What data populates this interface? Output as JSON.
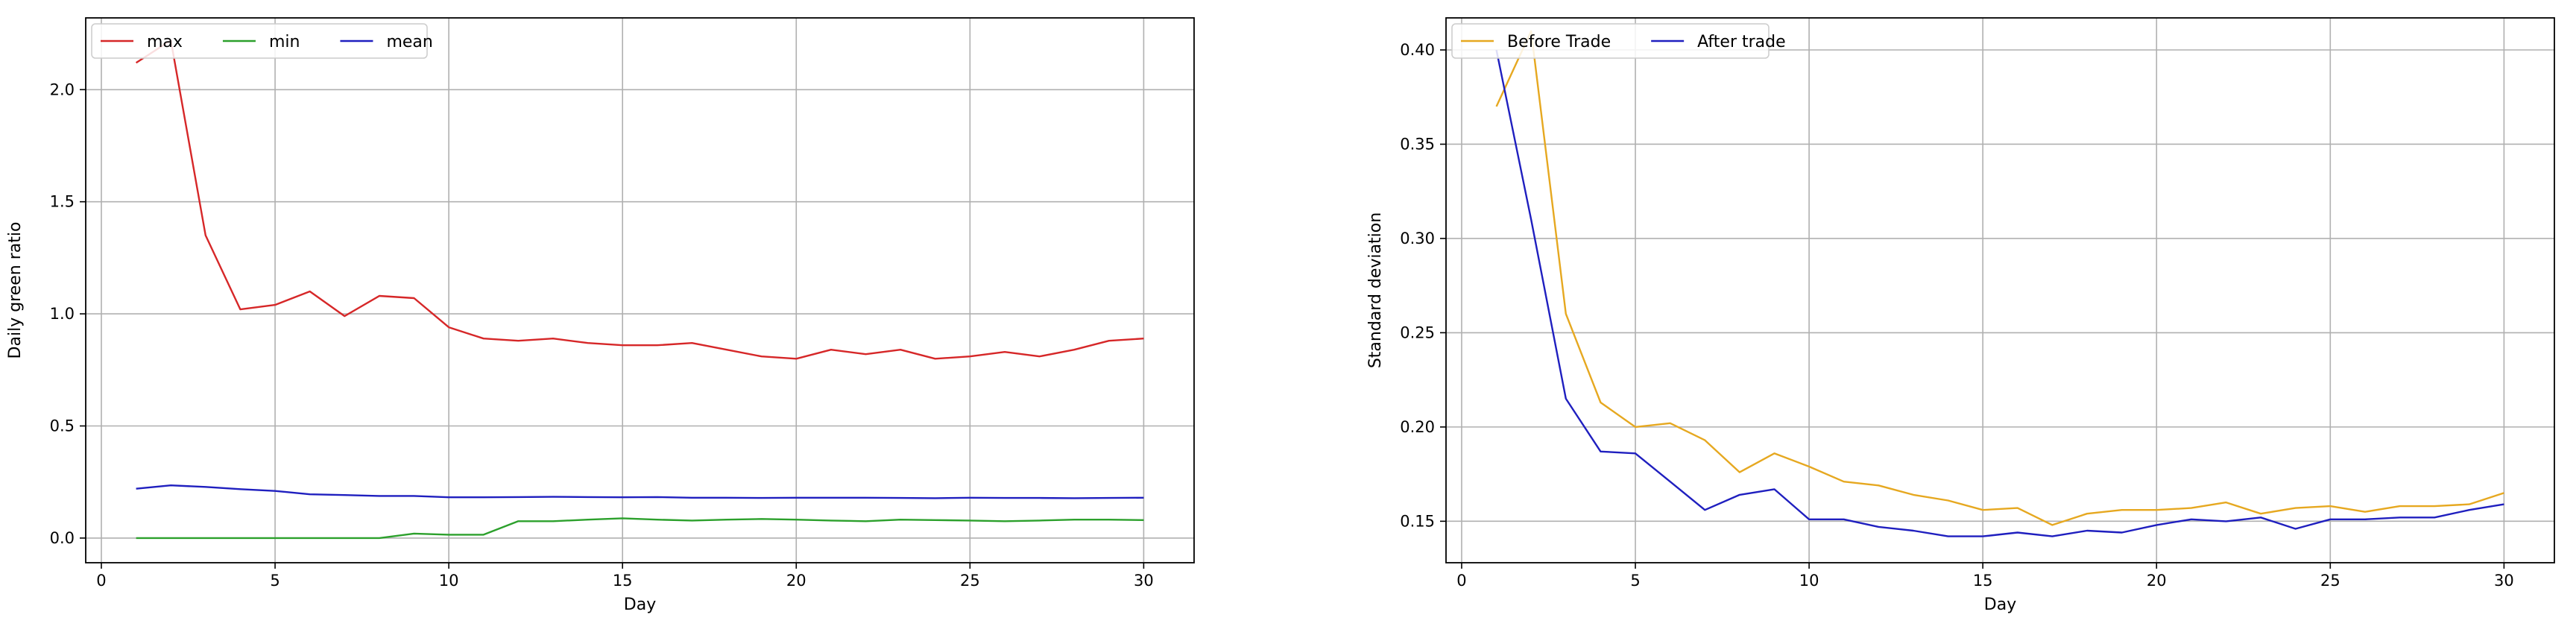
{
  "chart_data": [
    {
      "type": "line",
      "title": "",
      "xlabel": "Day",
      "ylabel": "Daily green ratio",
      "xlim": [
        -0.45,
        31.45
      ],
      "ylim": [
        -0.11,
        2.32
      ],
      "xticks": [
        0,
        5,
        10,
        15,
        20,
        25,
        30
      ],
      "xtick_labels": [
        "0",
        "5",
        "10",
        "15",
        "20",
        "25",
        "30"
      ],
      "yticks": [
        0.0,
        0.5,
        1.0,
        1.5,
        2.0
      ],
      "ytick_labels": [
        "0.0",
        "0.5",
        "1.0",
        "1.5",
        "2.0"
      ],
      "grid": true,
      "legend_position": "upper-left",
      "legend_ncol": 3,
      "x": [
        1,
        2,
        3,
        4,
        5,
        6,
        7,
        8,
        9,
        10,
        11,
        12,
        13,
        14,
        15,
        16,
        17,
        18,
        19,
        20,
        21,
        22,
        23,
        24,
        25,
        26,
        27,
        28,
        29,
        30
      ],
      "series": [
        {
          "name": "max",
          "color": "#d62728",
          "values": [
            2.12,
            2.22,
            1.35,
            1.02,
            1.04,
            1.1,
            0.99,
            1.08,
            1.07,
            0.94,
            0.89,
            0.88,
            0.89,
            0.87,
            0.86,
            0.86,
            0.87,
            0.84,
            0.81,
            0.8,
            0.84,
            0.82,
            0.84,
            0.8,
            0.81,
            0.83,
            0.81,
            0.84,
            0.88,
            0.89
          ]
        },
        {
          "name": "min",
          "color": "#2ca02c",
          "values": [
            0.0,
            0.0,
            0.0,
            0.0,
            0.0,
            0.0,
            0.0,
            0.0,
            0.02,
            0.015,
            0.015,
            0.075,
            0.075,
            0.082,
            0.088,
            0.082,
            0.078,
            0.082,
            0.085,
            0.082,
            0.078,
            0.075,
            0.082,
            0.08,
            0.078,
            0.075,
            0.078,
            0.082,
            0.082,
            0.08
          ]
        },
        {
          "name": "mean",
          "color": "#1f1fbf",
          "values": [
            0.22,
            0.235,
            0.228,
            0.218,
            0.21,
            0.195,
            0.192,
            0.188,
            0.188,
            0.182,
            0.182,
            0.183,
            0.184,
            0.183,
            0.182,
            0.183,
            0.18,
            0.18,
            0.179,
            0.18,
            0.18,
            0.18,
            0.179,
            0.178,
            0.18,
            0.179,
            0.179,
            0.178,
            0.179,
            0.18
          ]
        }
      ]
    },
    {
      "type": "line",
      "title": "",
      "xlabel": "Day",
      "ylabel": "Standard deviation",
      "xlim": [
        -0.45,
        31.45
      ],
      "ylim": [
        0.128,
        0.417
      ],
      "xticks": [
        0,
        5,
        10,
        15,
        20,
        25,
        30
      ],
      "xtick_labels": [
        "0",
        "5",
        "10",
        "15",
        "20",
        "25",
        "30"
      ],
      "yticks": [
        0.15,
        0.2,
        0.25,
        0.3,
        0.35,
        0.4
      ],
      "ytick_labels": [
        "0.15",
        "0.20",
        "0.25",
        "0.30",
        "0.35",
        "0.40"
      ],
      "grid": true,
      "legend_position": "upper-left",
      "legend_ncol": 2,
      "x": [
        1,
        2,
        3,
        4,
        5,
        6,
        7,
        8,
        9,
        10,
        11,
        12,
        13,
        14,
        15,
        16,
        17,
        18,
        19,
        20,
        21,
        22,
        23,
        24,
        25,
        26,
        27,
        28,
        29,
        30
      ],
      "series": [
        {
          "name": "Before Trade",
          "color": "#e6a820",
          "values": [
            0.37,
            0.41,
            0.26,
            0.213,
            0.2,
            0.202,
            0.193,
            0.176,
            0.186,
            0.179,
            0.171,
            0.169,
            0.164,
            0.161,
            0.156,
            0.157,
            0.148,
            0.154,
            0.156,
            0.156,
            0.157,
            0.16,
            0.154,
            0.157,
            0.158,
            0.155,
            0.158,
            0.158,
            0.159,
            0.165
          ]
        },
        {
          "name": "After trade",
          "color": "#1f1fbf",
          "values": [
            0.4,
            0.31,
            0.215,
            0.187,
            0.186,
            0.171,
            0.156,
            0.164,
            0.167,
            0.151,
            0.151,
            0.147,
            0.145,
            0.142,
            0.142,
            0.144,
            0.142,
            0.145,
            0.144,
            0.148,
            0.151,
            0.15,
            0.152,
            0.146,
            0.151,
            0.151,
            0.152,
            0.152,
            0.156,
            0.159
          ]
        }
      ]
    }
  ]
}
